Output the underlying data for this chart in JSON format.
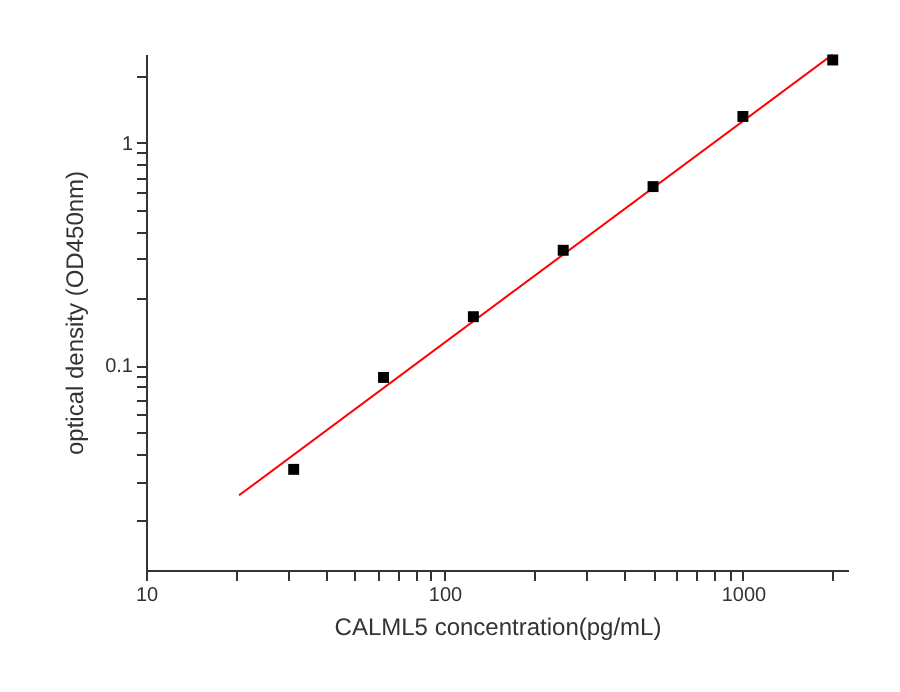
{
  "chart_data": {
    "type": "scatter",
    "xlabel": "CALML5  concentration(pg/mL)",
    "ylabel": "optical density (OD450nm)",
    "log": "xy",
    "grid": false,
    "marker": "square",
    "xlim": [
      10,
      2250
    ],
    "ylim": [
      0.012,
      2.5
    ],
    "xticks": [
      10,
      {
        "value": 20,
        "label": null
      },
      {
        "value": 30,
        "label": null
      },
      {
        "value": 40,
        "label": null
      },
      {
        "value": 50,
        "label": null
      },
      {
        "value": 60,
        "label": null
      },
      {
        "value": 70,
        "label": null
      },
      {
        "value": 80,
        "label": null
      },
      {
        "value": 90,
        "label": null
      },
      100,
      {
        "value": 200,
        "label": null
      },
      {
        "value": 300,
        "label": null
      },
      {
        "value": 400,
        "label": null
      },
      {
        "value": 500,
        "label": null
      },
      {
        "value": 600,
        "label": null
      },
      {
        "value": 700,
        "label": null
      },
      {
        "value": 800,
        "label": null
      },
      {
        "value": 900,
        "label": null
      },
      1000,
      {
        "value": 2000,
        "label": null
      }
    ],
    "yticks": [
      {
        "value": 0.02,
        "label": null
      },
      {
        "value": 0.03,
        "label": null
      },
      {
        "value": 0.04,
        "label": null
      },
      {
        "value": 0.05,
        "label": null
      },
      {
        "value": 0.06,
        "label": null
      },
      {
        "value": 0.07,
        "label": null
      },
      {
        "value": 0.08,
        "label": null
      },
      {
        "value": 0.09,
        "label": null
      },
      0.1,
      {
        "value": 0.2,
        "label": null
      },
      {
        "value": 0.3,
        "label": null
      },
      {
        "value": 0.4,
        "label": null
      },
      {
        "value": 0.5,
        "label": null
      },
      {
        "value": 0.6,
        "label": null
      },
      {
        "value": 0.7,
        "label": null
      },
      {
        "value": 0.8,
        "label": null
      },
      {
        "value": 0.9,
        "label": null
      },
      1,
      {
        "value": 2,
        "label": null
      }
    ],
    "series": [
      {
        "type": "line",
        "marker": "none",
        "color": "#ff0000",
        "x": [
          20.5,
          2000
        ],
        "values": [
          0.026,
          2.49
        ]
      },
      {
        "color": "#000000",
        "x": [
          31.25,
          62.5,
          125,
          250,
          500,
          1000,
          2000
        ],
        "values": [
          0.034,
          0.088,
          0.165,
          0.328,
          0.634,
          1.31,
          2.35
        ]
      }
    ]
  }
}
